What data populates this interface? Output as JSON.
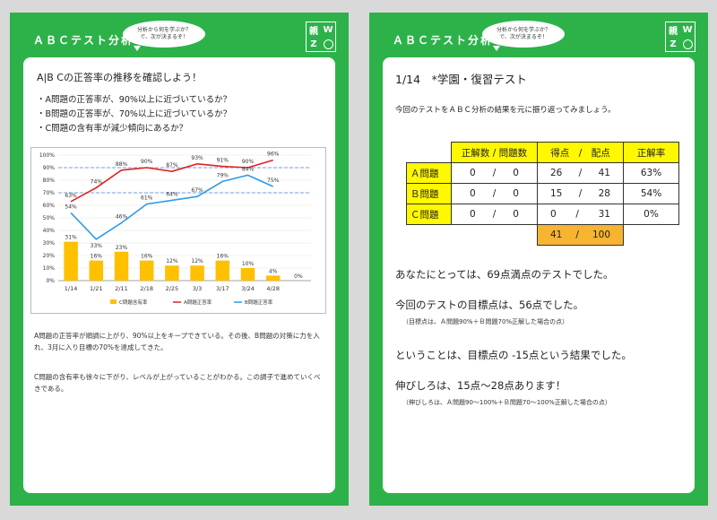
{
  "header": {
    "title": "ＡＢＣテスト分析",
    "bubble_line1": "分析から何を学ぶか？",
    "bubble_line2": "で、次が決まるぞ！",
    "logo_char1": "親",
    "logo_char2": "W",
    "logo_char3": "Z"
  },
  "left": {
    "heading": "A|B Cの正答率の推移を確認しよう！",
    "bullets": [
      "・A問題の正答率が、90%以上に近づいているか？",
      "・B問題の正答率が、70%以上に近づいているか？",
      "・C問題の含有率が減少傾向にあるか？"
    ],
    "desc1": "A問題の正答率が順調に上がり、90%以上をキープできている。その後、B問題の対策に力を入れ、3月に入り目標の70%を達成してきた。",
    "desc2": "C問題の含有率も徐々に下がり、レベルが上がっていることがわかる。この調子で進めていくべきである。"
  },
  "chart_data": {
    "type": "bar",
    "categories": [
      "1/14",
      "1/21",
      "2/11",
      "2/18",
      "2/25",
      "3/3",
      "3/17",
      "3/24",
      "4/28"
    ],
    "y_ticks": [
      "0%",
      "10%",
      "20%",
      "30%",
      "40%",
      "50%",
      "60%",
      "70%",
      "80%",
      "90%",
      "100%"
    ],
    "ylim": [
      0,
      100
    ],
    "series": [
      {
        "name": "C問題含有率",
        "type": "bar",
        "values": [
          31,
          16,
          23,
          16,
          12,
          12,
          16,
          10,
          4
        ],
        "labels": [
          "31%",
          "16%",
          "23%",
          "16%",
          "12%",
          "12%",
          "16%",
          "10%",
          "4%"
        ]
      },
      {
        "name": "A問題正答率",
        "type": "line",
        "values": [
          63,
          74,
          88,
          90,
          87,
          93,
          91,
          90,
          96
        ],
        "labels": [
          "63%",
          "74%",
          "88%",
          "90%",
          "87%",
          "93%",
          "91%",
          "90%",
          "96%"
        ]
      },
      {
        "name": "B問題正答率",
        "type": "line",
        "values": [
          54,
          33,
          46,
          61,
          64,
          67,
          79,
          84,
          75
        ],
        "labels": [
          "54%",
          "33%",
          "46%",
          "61%",
          "64%",
          "67%",
          "79%",
          "84%",
          "75%"
        ]
      }
    ],
    "extra_label": "0%",
    "reference_lines": [
      90,
      70
    ],
    "legend_position": "bottom",
    "colors": {
      "bar": "#ffc000",
      "a_line": "#e02020",
      "b_line": "#2e9be8",
      "ref": "#8fb4e3"
    }
  },
  "right": {
    "title": "1/14　*学園・復習テスト",
    "intro": "今回のテストをＡＢＣ分析の結果を元に振り返ってみましょう。",
    "table": {
      "headers": [
        "正解数 / 問題数",
        "得点　/　配点",
        "正解率"
      ],
      "rows": [
        {
          "label": "Ａ問題",
          "correct": "0",
          "count": "0",
          "score": "26",
          "max": "41",
          "rate": "63%"
        },
        {
          "label": "Ｂ問題",
          "correct": "0",
          "count": "0",
          "score": "15",
          "max": "28",
          "rate": "54%"
        },
        {
          "label": "Ｃ問題",
          "correct": "0",
          "count": "0",
          "score": "0",
          "max": "31",
          "rate": "0%"
        }
      ],
      "total_score": "41",
      "total_max": "100",
      "slash": "/"
    },
    "line1": "あなたにとっては、69点満点のテストでした。",
    "line2": "今回のテストの目標点は、56点でした。",
    "note2": "（目標点は、Ａ問題90%＋Ｂ問題70%正解した場合の点）",
    "line3": "ということは、目標点の -15点という結果でした。",
    "line4": "伸びしろは、15点～28点あります！",
    "note4": "（伸びしろは、Ａ問題90～100%＋Ｂ問題70～100%正解した場合の点）"
  }
}
